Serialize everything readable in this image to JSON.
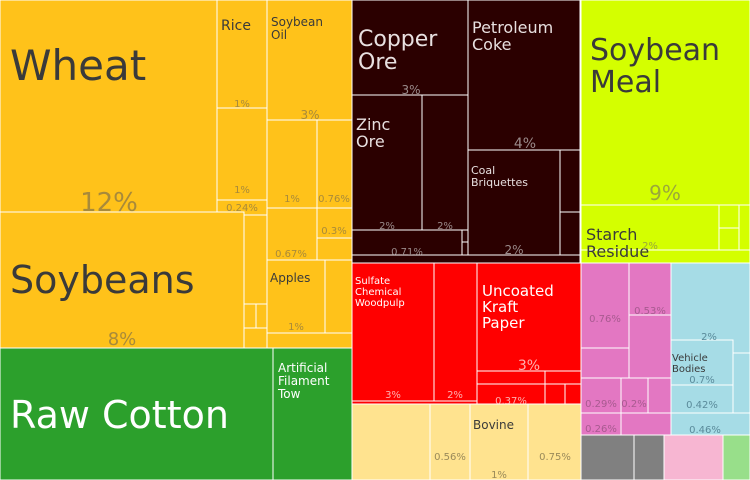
{
  "chart_data": {
    "type": "treemap",
    "colors": {
      "agriculture": "#ffc21a",
      "textiles": "#2ca02c",
      "minerals": "#2b0000",
      "oils_feed": "#d4ff00",
      "paper": "#ff0000",
      "animal": "#ffe38f",
      "chemicals": "#e377c2",
      "machinery": "#a6dce6",
      "metals": "#808080",
      "pink_misc": "#f7b6d2",
      "light_green": "#98df8a",
      "border": "#ffffff"
    },
    "nodes": [
      {
        "name": "Wheat",
        "percent": "12%",
        "group": "agriculture",
        "size": "large"
      },
      {
        "name": "Rice",
        "percent": "1%",
        "group": "agriculture",
        "size": "small"
      },
      {
        "name": "Soybean Oil",
        "percent": "3%",
        "group": "agriculture",
        "size": "small"
      },
      {
        "name": "",
        "percent": "1%",
        "group": "agriculture",
        "size": "small"
      },
      {
        "name": "",
        "percent": "0.24%",
        "group": "agriculture",
        "size": "small"
      },
      {
        "name": "",
        "percent": "1%",
        "group": "agriculture",
        "size": "small"
      },
      {
        "name": "",
        "percent": "0.76%",
        "group": "agriculture",
        "size": "small"
      },
      {
        "name": "",
        "percent": "0.67%",
        "group": "agriculture",
        "size": "small"
      },
      {
        "name": "",
        "percent": "0.3%",
        "group": "agriculture",
        "size": "small"
      },
      {
        "name": "Apples",
        "percent": "1%",
        "group": "agriculture",
        "size": "small"
      },
      {
        "name": "Soybeans",
        "percent": "8%",
        "group": "agriculture",
        "size": "large"
      },
      {
        "name": "Raw Cotton",
        "percent": "",
        "group": "textiles",
        "size": "large"
      },
      {
        "name": "Artificial Filament Tow",
        "percent": "",
        "group": "textiles",
        "size": "small"
      },
      {
        "name": "Copper Ore",
        "percent": "3%",
        "group": "minerals",
        "size": "medium"
      },
      {
        "name": "Petroleum Coke",
        "percent": "4%",
        "group": "minerals",
        "size": "medium-small"
      },
      {
        "name": "Zinc Ore",
        "percent": "2%",
        "group": "minerals",
        "size": "medium-small"
      },
      {
        "name": "",
        "percent": "2%",
        "group": "minerals",
        "size": "small"
      },
      {
        "name": "Coal Briquettes",
        "percent": "2%",
        "group": "minerals",
        "size": "small"
      },
      {
        "name": "",
        "percent": "0.71%",
        "group": "minerals",
        "size": "small"
      },
      {
        "name": "Soybean Meal",
        "percent": "9%",
        "group": "oils_feed",
        "size": "large"
      },
      {
        "name": "Starch Residue",
        "percent": "2%",
        "group": "oils_feed",
        "size": "medium-small"
      },
      {
        "name": "Sulfate Chemical Woodpulp",
        "percent": "3%",
        "group": "paper",
        "size": "small"
      },
      {
        "name": "",
        "percent": "2%",
        "group": "paper",
        "size": "small"
      },
      {
        "name": "Uncoated Kraft Paper",
        "percent": "3%",
        "group": "paper",
        "size": "medium-small"
      },
      {
        "name": "",
        "percent": "0.37%",
        "group": "paper",
        "size": "small"
      },
      {
        "name": "Bovine",
        "percent": "1%",
        "group": "animal",
        "size": "small"
      },
      {
        "name": "",
        "percent": "0.56%",
        "group": "animal",
        "size": "small"
      },
      {
        "name": "",
        "percent": "0.75%",
        "group": "animal",
        "size": "small"
      },
      {
        "name": "",
        "percent": "0.76%",
        "group": "chemicals",
        "size": "small"
      },
      {
        "name": "",
        "percent": "0.53%",
        "group": "chemicals",
        "size": "small"
      },
      {
        "name": "",
        "percent": "0.29%",
        "group": "chemicals",
        "size": "small"
      },
      {
        "name": "",
        "percent": "0.2%",
        "group": "chemicals",
        "size": "small"
      },
      {
        "name": "",
        "percent": "0.26%",
        "group": "chemicals",
        "size": "small"
      },
      {
        "name": "",
        "percent": "2%",
        "group": "machinery",
        "size": "small"
      },
      {
        "name": "Vehicle Bodies",
        "percent": "0.7%",
        "group": "machinery",
        "size": "small"
      },
      {
        "name": "",
        "percent": "0.42%",
        "group": "machinery",
        "size": "small"
      },
      {
        "name": "",
        "percent": "0.46%",
        "group": "machinery",
        "size": "small"
      }
    ]
  }
}
